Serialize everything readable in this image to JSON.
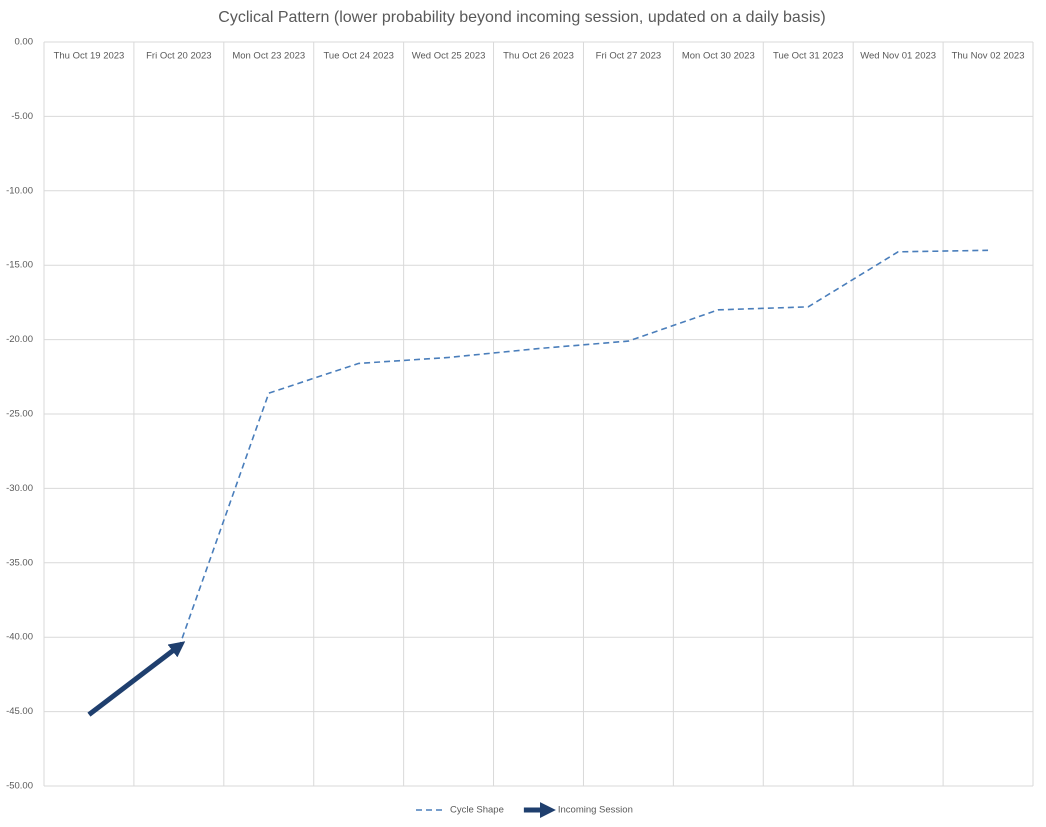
{
  "chart_data": {
    "type": "line",
    "title": "Cyclical Pattern (lower probability beyond incoming session, updated on a daily basis)",
    "categories": [
      "Thu Oct 19 2023",
      "Fri Oct 20 2023",
      "Mon Oct 23 2023",
      "Tue Oct 24 2023",
      "Wed Oct 25 2023",
      "Thu Oct 26 2023",
      "Fri Oct 27 2023",
      "Mon Oct 30 2023",
      "Tue Oct 31 2023",
      "Wed Nov 01 2023",
      "Thu Nov 02 2023"
    ],
    "series": [
      {
        "name": "Cycle Shape",
        "color": "#4a7ebb",
        "dash": true,
        "values": [
          null,
          -40.7,
          -23.6,
          -21.6,
          -21.2,
          -20.6,
          -20.1,
          -18.0,
          -17.8,
          -14.1,
          -14.0
        ]
      },
      {
        "name": "Incoming Session",
        "color": "#1f3f6e",
        "arrow": true,
        "values": [
          -45.2,
          -40.6,
          null,
          null,
          null,
          null,
          null,
          null,
          null,
          null,
          null
        ]
      }
    ],
    "ylim": [
      -50,
      0
    ],
    "yticks": [
      {
        "value": 0,
        "label": "0.00"
      },
      {
        "value": -5,
        "label": "-5.00"
      },
      {
        "value": -10,
        "label": "-10.00"
      },
      {
        "value": -15,
        "label": "-15.00"
      },
      {
        "value": -20,
        "label": "-20.00"
      },
      {
        "value": -25,
        "label": "-25.00"
      },
      {
        "value": -30,
        "label": "-30.00"
      },
      {
        "value": -35,
        "label": "-35.00"
      },
      {
        "value": -40,
        "label": "-40.00"
      },
      {
        "value": -45,
        "label": "-45.00"
      },
      {
        "value": -50,
        "label": "-50.00"
      }
    ],
    "grid": true,
    "legend": "bottom"
  }
}
